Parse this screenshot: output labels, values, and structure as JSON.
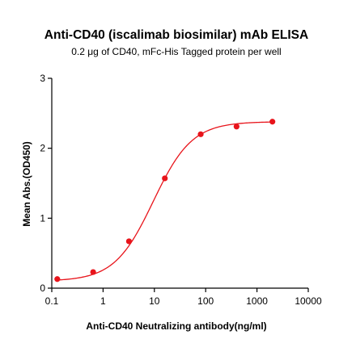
{
  "chart_data": {
    "type": "scatter",
    "title": "Anti-CD40 (iscalimab biosimilar) mAb ELISA",
    "subtitle": "0.2 μg of CD40, mFc-His Tagged protein per well",
    "xlabel": "Anti-CD40 Neutralizing antibody(ng/ml)",
    "ylabel": "Mean Abs.(OD450)",
    "x_scale": "log",
    "xlim": [
      0.1,
      10000
    ],
    "ylim": [
      0,
      3
    ],
    "x_ticks": [
      "0.1",
      "1",
      "10",
      "100",
      "1000",
      "10000"
    ],
    "y_ticks": [
      "0",
      "1",
      "2",
      "3"
    ],
    "grid": false,
    "colors": {
      "series": "#e8141b",
      "axis": "#000000"
    },
    "series": [
      {
        "x": [
          0.128,
          0.64,
          3.2,
          16,
          80,
          400,
          2000
        ],
        "y": [
          0.13,
          0.23,
          0.67,
          1.57,
          2.2,
          2.31,
          2.38
        ]
      }
    ],
    "fit": {
      "model": "4PL",
      "bottom": 0.1,
      "top": 2.38,
      "ec50": 9.5,
      "hill": 1.15
    }
  }
}
